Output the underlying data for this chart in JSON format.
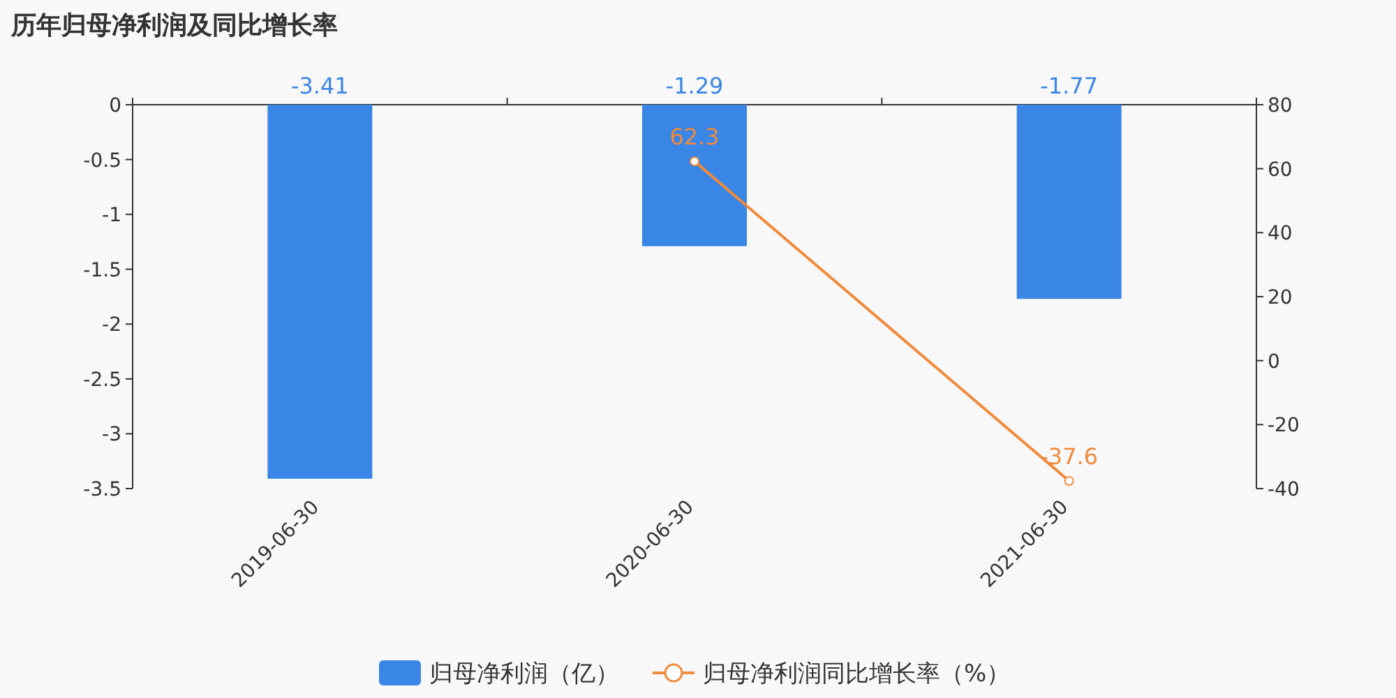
{
  "chart_data": {
    "type": "bar",
    "title": "历年归母净利润及同比增长率",
    "categories": [
      "2019-06-30",
      "2020-06-30",
      "2021-06-30"
    ],
    "series": [
      {
        "name": "归母净利润（亿）",
        "color": "#3a86e6",
        "values": [
          -3.41,
          -1.29,
          -1.77
        ]
      },
      {
        "name": "归母净利润同比增长率（%）",
        "type": "line",
        "axis": "y2",
        "color": "#f08a3c",
        "values": [
          null,
          62.3,
          -37.6
        ]
      }
    ],
    "ylim": [
      -3.5,
      0
    ],
    "yticks": [
      0,
      -0.5,
      -1,
      -1.5,
      -2,
      -2.5,
      -3,
      -3.5
    ],
    "y2lim": [
      -40,
      80
    ],
    "y2ticks": [
      80,
      60,
      40,
      20,
      0,
      -20,
      -40
    ],
    "data_labels": true,
    "legend": "bottom",
    "marker": "circle"
  }
}
